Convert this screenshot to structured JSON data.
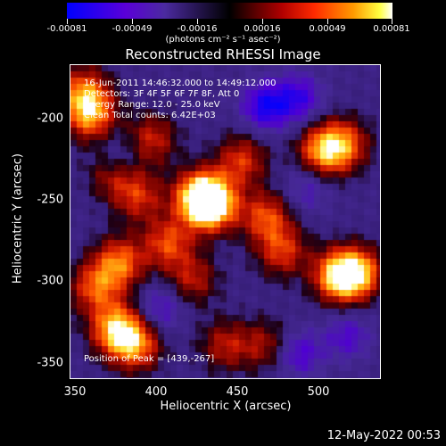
{
  "colorbar": {
    "ticks": [
      "-0.00081",
      "-0.00049",
      "-0.00016",
      "0.00016",
      "0.00049",
      "0.00081"
    ],
    "units": "(photons cm⁻² s⁻¹ asec⁻²)",
    "colors": [
      "#0000ff",
      "#5a00d8",
      "#000000",
      "#b00000",
      "#ff9a00",
      "#ffffff"
    ]
  },
  "title": "Reconstructed RHESSI Image",
  "info": {
    "time_range": "16-Jun-2011 14:46:32.000 to 14:49:12.000",
    "detectors": "Detectors: 3F 4F 5F 6F 7F 8F, Att 0",
    "energy": "Energy Range: 12.0 - 25.0 keV",
    "clean": "Clean    Total counts: 6.42E+03"
  },
  "peak": "Position of Peak = [439,-267]",
  "axes": {
    "x_label": "Heliocentric X (arcsec)",
    "y_label": "Heliocentric Y (arcsec)",
    "x_ticks": [
      "350",
      "400",
      "450",
      "500"
    ],
    "y_ticks": [
      "-200",
      "-250",
      "-300",
      "-350"
    ],
    "x_range": [
      350,
      540
    ],
    "y_range": [
      -360,
      -170
    ]
  },
  "footer_date": "12-May-2022 00:53",
  "sources": [
    {
      "x": 430,
      "y": -250,
      "strength": 1.0
    },
    {
      "x": 437,
      "y": -255,
      "strength": 0.9
    },
    {
      "x": 470,
      "y": -262,
      "strength": 0.6
    },
    {
      "x": 480,
      "y": -283,
      "strength": 0.55
    },
    {
      "x": 515,
      "y": -298,
      "strength": 0.95
    },
    {
      "x": 527,
      "y": -296,
      "strength": 0.7
    },
    {
      "x": 505,
      "y": -222,
      "strength": 0.75
    },
    {
      "x": 518,
      "y": -218,
      "strength": 0.6
    },
    {
      "x": 362,
      "y": -200,
      "strength": 0.75
    },
    {
      "x": 358,
      "y": -186,
      "strength": 0.6
    },
    {
      "x": 377,
      "y": -235,
      "strength": 0.55
    },
    {
      "x": 392,
      "y": -250,
      "strength": 0.5
    },
    {
      "x": 380,
      "y": -290,
      "strength": 0.7
    },
    {
      "x": 365,
      "y": -305,
      "strength": 0.6
    },
    {
      "x": 378,
      "y": -330,
      "strength": 0.85
    },
    {
      "x": 390,
      "y": -340,
      "strength": 0.7
    },
    {
      "x": 410,
      "y": -278,
      "strength": 0.6
    },
    {
      "x": 425,
      "y": -300,
      "strength": 0.45
    },
    {
      "x": 455,
      "y": -228,
      "strength": 0.55
    },
    {
      "x": 445,
      "y": -340,
      "strength": 0.45
    },
    {
      "x": 400,
      "y": -215,
      "strength": 0.5
    },
    {
      "x": 470,
      "y": -340,
      "strength": 0.4
    }
  ],
  "negatives": [
    {
      "x": 470,
      "y": -195,
      "strength": 0.9
    },
    {
      "x": 490,
      "y": -190,
      "strength": 0.7
    },
    {
      "x": 380,
      "y": -228,
      "strength": 0.55
    },
    {
      "x": 405,
      "y": -318,
      "strength": 0.5
    },
    {
      "x": 490,
      "y": -345,
      "strength": 0.6
    },
    {
      "x": 520,
      "y": -335,
      "strength": 0.5
    },
    {
      "x": 495,
      "y": -245,
      "strength": 0.4
    }
  ]
}
